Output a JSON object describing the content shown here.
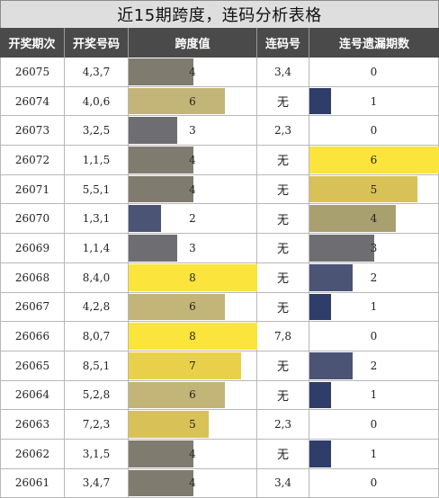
{
  "title": "近15期跨度，连码分析表格",
  "headers": {
    "issue": "开奖期次",
    "numbers": "开奖号码",
    "span": "跨度值",
    "consecutive": "连码号",
    "omission": "连号遗漏期数"
  },
  "scales": {
    "span_max": 8,
    "omission_max": 6
  },
  "colors": {
    "1": "#2f3d6b",
    "2": "#4b5475",
    "3": "#6e6e72",
    "4": "#807b6f",
    "5": "#d8c156",
    "6": "#c2b577",
    "7": "#e8d04a",
    "8": "#fbe43b",
    "omission_4": "#a9a070"
  },
  "rows": [
    {
      "issue": "26075",
      "numbers": "4,3,7",
      "span": "4",
      "span_value": 4,
      "consecutive": "3,4",
      "omission": "0",
      "omission_value": 0
    },
    {
      "issue": "26074",
      "numbers": "4,0,6",
      "span": "6",
      "span_value": 6,
      "consecutive": "无",
      "omission": "1",
      "omission_value": 1
    },
    {
      "issue": "26073",
      "numbers": "3,2,5",
      "span": "3",
      "span_value": 3,
      "consecutive": "2,3",
      "omission": "0",
      "omission_value": 0
    },
    {
      "issue": "26072",
      "numbers": "1,1,5",
      "span": "4",
      "span_value": 4,
      "consecutive": "无",
      "omission": "6",
      "omission_value": 6
    },
    {
      "issue": "26071",
      "numbers": "5,5,1",
      "span": "4",
      "span_value": 4,
      "consecutive": "无",
      "omission": "5",
      "omission_value": 5
    },
    {
      "issue": "26070",
      "numbers": "1,3,1",
      "span": "2",
      "span_value": 2,
      "consecutive": "无",
      "omission": "4",
      "omission_value": 4
    },
    {
      "issue": "26069",
      "numbers": "1,1,4",
      "span": "3",
      "span_value": 3,
      "consecutive": "无",
      "omission": "3",
      "omission_value": 3
    },
    {
      "issue": "26068",
      "numbers": "8,4,0",
      "span": "8",
      "span_value": 8,
      "consecutive": "无",
      "omission": "2",
      "omission_value": 2
    },
    {
      "issue": "26067",
      "numbers": "4,2,8",
      "span": "6",
      "span_value": 6,
      "consecutive": "无",
      "omission": "1",
      "omission_value": 1
    },
    {
      "issue": "26066",
      "numbers": "8,0,7",
      "span": "8",
      "span_value": 8,
      "consecutive": "7,8",
      "omission": "0",
      "omission_value": 0
    },
    {
      "issue": "26065",
      "numbers": "8,5,1",
      "span": "7",
      "span_value": 7,
      "consecutive": "无",
      "omission": "2",
      "omission_value": 2
    },
    {
      "issue": "26064",
      "numbers": "5,2,8",
      "span": "6",
      "span_value": 6,
      "consecutive": "无",
      "omission": "1",
      "omission_value": 1
    },
    {
      "issue": "26063",
      "numbers": "7,2,3",
      "span": "5",
      "span_value": 5,
      "consecutive": "2,3",
      "omission": "0",
      "omission_value": 0
    },
    {
      "issue": "26062",
      "numbers": "3,1,5",
      "span": "4",
      "span_value": 4,
      "consecutive": "无",
      "omission": "1",
      "omission_value": 1
    },
    {
      "issue": "26061",
      "numbers": "3,4,7",
      "span": "4",
      "span_value": 4,
      "consecutive": "3,4",
      "omission": "0",
      "omission_value": 0
    }
  ]
}
